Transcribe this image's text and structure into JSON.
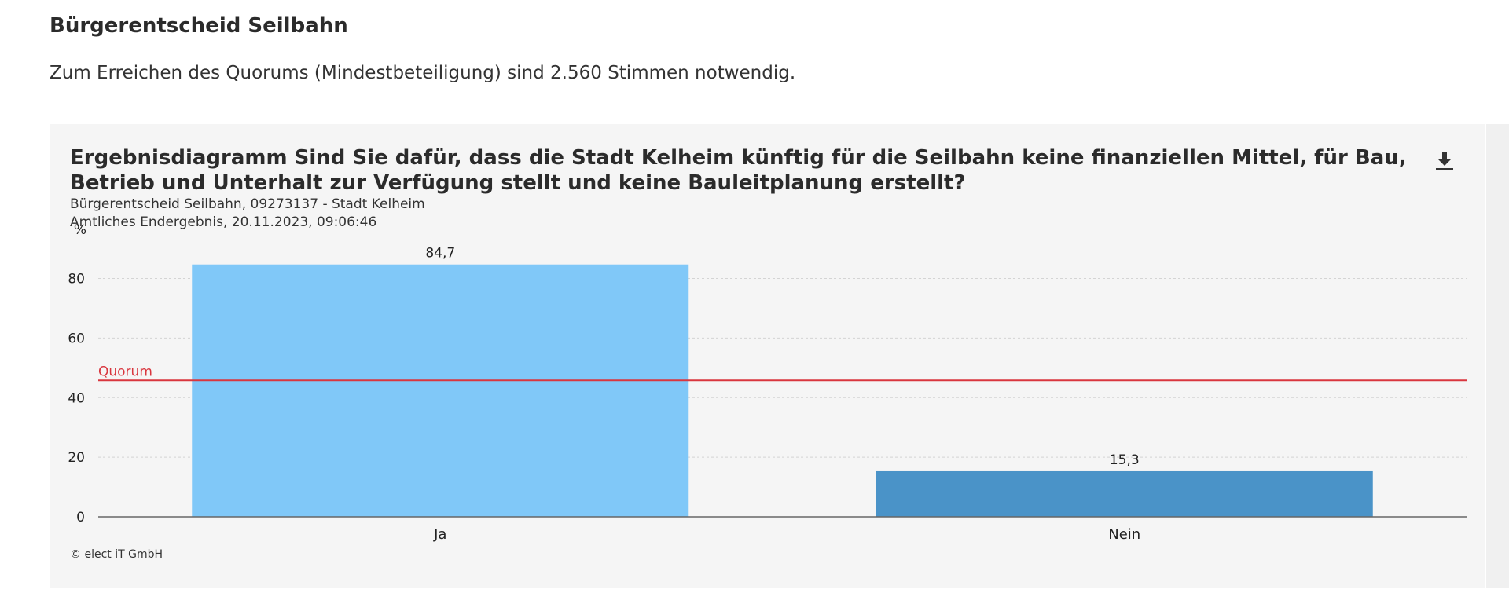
{
  "page": {
    "heading": "Bürgerentscheid Seilbahn",
    "intro": "Zum Erreichen des Quorums (Mindestbeteiligung) sind 2.560 Stimmen notwendig."
  },
  "download_icon": "download-icon",
  "chart_data": {
    "type": "bar",
    "title": "Ergebnisdiagramm Sind Sie dafür, dass die Stadt Kelheim künftig für die Seilbahn keine finanziellen Mittel, für Bau, Betrieb und Unterhalt zur Verfügung stellt und keine Bauleitplanung erstellt?",
    "subtitle": "Bürgerentscheid Seilbahn, 09273137 - Stadt Kelheim",
    "status": "Amtliches Endergebnis, 20.11.2023, 09:06:46",
    "ylabel": "%",
    "categories": [
      "Ja",
      "Nein"
    ],
    "values": [
      84.7,
      15.3
    ],
    "value_labels": [
      "84,7",
      "15,3"
    ],
    "colors": [
      "#80c8f8",
      "#4a93c8"
    ],
    "ylim": [
      0,
      87
    ],
    "yticks": [
      0,
      20,
      40,
      60,
      80
    ],
    "grid": true,
    "quorum": {
      "label": "Quorum",
      "value": 45.8,
      "color": "#d9363e"
    },
    "credits": "© elect iT GmbH"
  }
}
